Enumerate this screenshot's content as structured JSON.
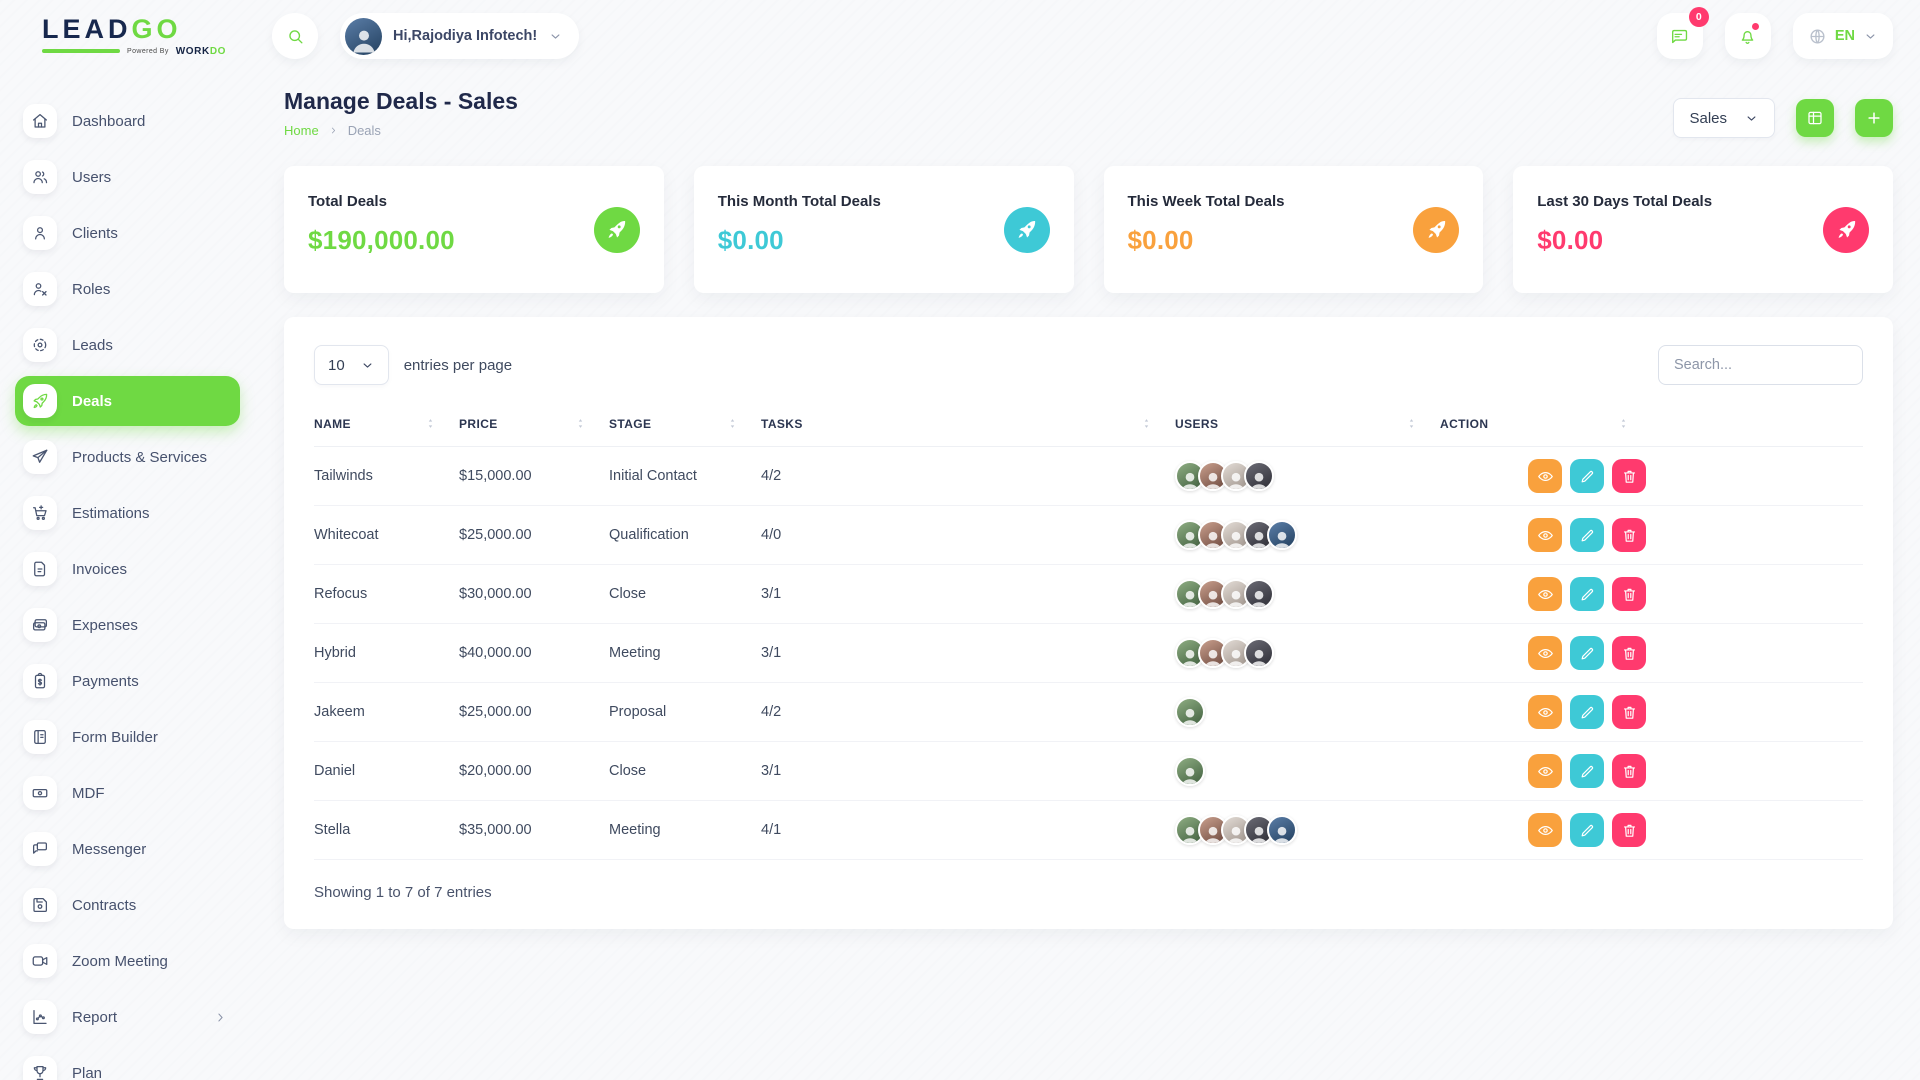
{
  "brand": {
    "name_primary": "LEAD",
    "name_accent": "GO",
    "powered_by": "Powered By",
    "powered_brand_primary": "WORK",
    "powered_brand_accent": "DO"
  },
  "topbar": {
    "greeting": "Hi,Rajodiya Infotech!",
    "message_badge": "0",
    "language": "EN"
  },
  "page": {
    "title": "Manage Deals - Sales",
    "breadcrumb": [
      "Home",
      "Deals"
    ],
    "filter_label": "Sales"
  },
  "sidebar": {
    "items": [
      {
        "label": "Dashboard",
        "icon": "home"
      },
      {
        "label": "Users",
        "icon": "users"
      },
      {
        "label": "Clients",
        "icon": "user"
      },
      {
        "label": "Roles",
        "icon": "user-x"
      },
      {
        "label": "Leads",
        "icon": "target"
      },
      {
        "label": "Deals",
        "icon": "rocket",
        "active": true
      },
      {
        "label": "Products & Services",
        "icon": "send"
      },
      {
        "label": "Estimations",
        "icon": "cart-plus"
      },
      {
        "label": "Invoices",
        "icon": "file-text"
      },
      {
        "label": "Expenses",
        "icon": "wallet"
      },
      {
        "label": "Payments",
        "icon": "clipboard-dollar"
      },
      {
        "label": "Form Builder",
        "icon": "book"
      },
      {
        "label": "MDF",
        "icon": "banknote"
      },
      {
        "label": "Messenger",
        "icon": "message"
      },
      {
        "label": "Contracts",
        "icon": "save"
      },
      {
        "label": "Zoom Meeting",
        "icon": "video"
      },
      {
        "label": "Report",
        "icon": "chart",
        "has_submenu": true
      },
      {
        "label": "Plan",
        "icon": "trophy"
      }
    ]
  },
  "stats": {
    "cards": [
      {
        "title": "Total Deals",
        "amount": "$190,000.00",
        "color": "#6fd943"
      },
      {
        "title": "This Month Total Deals",
        "amount": "$0.00",
        "color": "#3ec9d6"
      },
      {
        "title": "This Week Total Deals",
        "amount": "$0.00",
        "color": "#f9a13d"
      },
      {
        "title": "Last 30 Days Total Deals",
        "amount": "$0.00",
        "color": "#ff3a6e"
      }
    ]
  },
  "table": {
    "entries_per_page": "10",
    "entries_label": "entries per page",
    "search_placeholder": "Search...",
    "columns": [
      "NAME",
      "PRICE",
      "STAGE",
      "TASKS",
      "USERS",
      "ACTION"
    ],
    "rows": [
      {
        "name": "Tailwinds",
        "price": "$15,000.00",
        "stage": "Initial Contact",
        "tasks": "4/2",
        "users_count": 4
      },
      {
        "name": "Whitecoat",
        "price": "$25,000.00",
        "stage": "Qualification",
        "tasks": "4/0",
        "users_count": 5
      },
      {
        "name": "Refocus",
        "price": "$30,000.00",
        "stage": "Close",
        "tasks": "3/1",
        "users_count": 4
      },
      {
        "name": "Hybrid",
        "price": "$40,000.00",
        "stage": "Meeting",
        "tasks": "3/1",
        "users_count": 4
      },
      {
        "name": "Jakeem",
        "price": "$25,000.00",
        "stage": "Proposal",
        "tasks": "4/2",
        "users_count": 1
      },
      {
        "name": "Daniel",
        "price": "$20,000.00",
        "stage": "Close",
        "tasks": "3/1",
        "users_count": 1
      },
      {
        "name": "Stella",
        "price": "$35,000.00",
        "stage": "Meeting",
        "tasks": "4/1",
        "users_count": 5
      }
    ],
    "actions": [
      {
        "name": "view",
        "icon": "eye",
        "color_key": "warning"
      },
      {
        "name": "edit",
        "icon": "pencil",
        "color_key": "info"
      },
      {
        "name": "delete",
        "icon": "trash",
        "color_key": "danger"
      }
    ],
    "footer": "Showing 1 to 7 of 7 entries"
  },
  "theme": {
    "primary": "#6fd943",
    "info": "#3ec9d6",
    "warning": "#f9a13d",
    "danger": "#ff3a6e",
    "avatar_gradients": [
      "linear-gradient(150deg,#8fae83,#41603f)",
      "linear-gradient(150deg,#caa08e,#6e4a3f)",
      "linear-gradient(150deg,#e3dcd6,#9f948c)",
      "linear-gradient(150deg,#6b6b75,#2e2e36)",
      "linear-gradient(150deg,#5b7ea8,#23405f)",
      "linear-gradient(150deg,#d8b49a,#8a5f46)"
    ]
  }
}
